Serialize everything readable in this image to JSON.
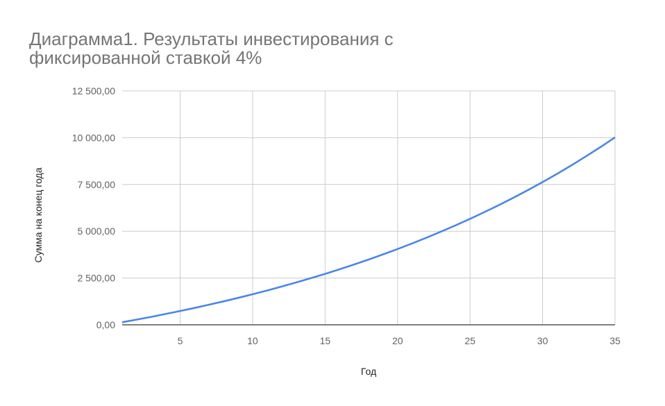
{
  "chart_data": {
    "type": "line",
    "title": "Диаграмма1. Результаты инвестирования с фиксированной ставкой 4%",
    "xlabel": "Год",
    "ylabel": "Сумма на конец года",
    "xlim": [
      1,
      35
    ],
    "ylim": [
      0,
      12500
    ],
    "xticks": [
      5,
      10,
      15,
      20,
      25,
      30,
      35
    ],
    "xtick_labels": [
      "5",
      "10",
      "15",
      "20",
      "25",
      "30",
      "35"
    ],
    "yticks": [
      0,
      2500,
      5000,
      7500,
      10000,
      12500
    ],
    "ytick_labels": [
      "0,00",
      "2 500,00",
      "5 000,00",
      "7 500,00",
      "10 000,00",
      "12 500,00"
    ],
    "grid": true,
    "legend": "none",
    "series": [
      {
        "color": "#4a86e8",
        "x": [
          1,
          2,
          3,
          4,
          5,
          6,
          7,
          8,
          9,
          10,
          11,
          12,
          13,
          14,
          15,
          16,
          17,
          18,
          19,
          20,
          21,
          22,
          23,
          24,
          25,
          26,
          27,
          28,
          29,
          30,
          31,
          32,
          33,
          34,
          35
        ],
        "values": [
          136,
          277.44,
          424.54,
          577.52,
          736.62,
          902.08,
          1074.17,
          1253.13,
          1439.26,
          1632.83,
          1834.14,
          2043.51,
          2261.25,
          2487.7,
          2723.21,
          2968.14,
          3222.86,
          3487.78,
          3763.29,
          4049.82,
          4347.81,
          4657.72,
          4980.03,
          5315.23,
          5663.84,
          6026.4,
          6403.45,
          6795.59,
          7203.42,
          7627.55,
          8068.65,
          8527.4,
          9004.5,
          9500.68,
          10016.7
        ]
      }
    ]
  }
}
